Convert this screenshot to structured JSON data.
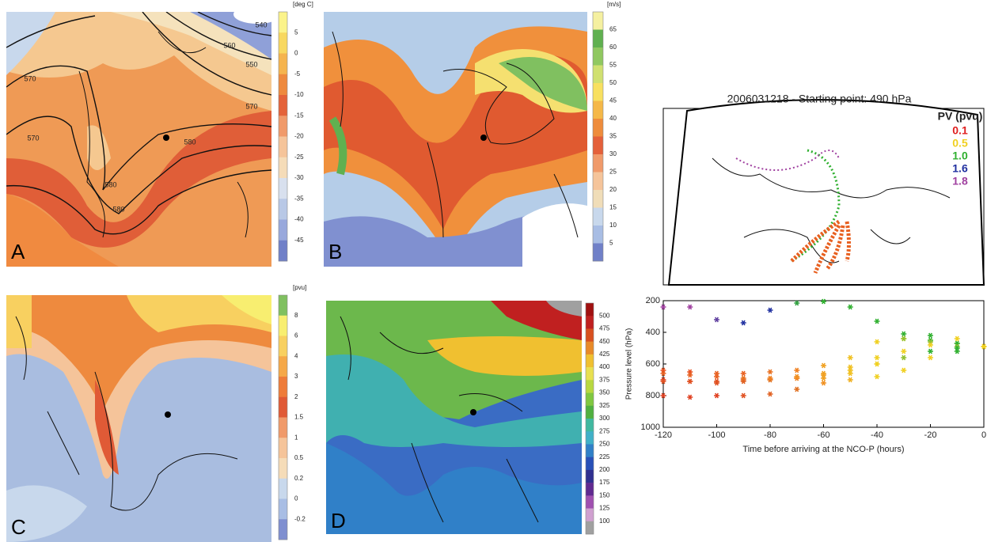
{
  "panels": [
    {
      "letter": "A",
      "unit": "[deg C]",
      "colorbar": {
        "labels": [
          "5",
          "0",
          "-5",
          "-10",
          "-15",
          "-20",
          "-25",
          "-30",
          "-35",
          "-40",
          "-45"
        ],
        "colors": [
          "#fbf38a",
          "#f8d860",
          "#f5b44e",
          "#ee8a3e",
          "#e4633a",
          "#f09a6a",
          "#f5c49a",
          "#f5dcb8",
          "#d8e0ee",
          "#b8c8e6",
          "#98a8dc",
          "#7080c8"
        ]
      },
      "contour_labels": [
        "540",
        "550",
        "560",
        "570",
        "570",
        "570",
        "580",
        "580",
        "580"
      ]
    },
    {
      "letter": "B",
      "unit": "[m/s]",
      "colorbar": {
        "labels": [
          "65",
          "60",
          "55",
          "50",
          "45",
          "40",
          "35",
          "30",
          "25",
          "20",
          "15",
          "10",
          "5"
        ],
        "colors": [
          "#f5f0a0",
          "#60b050",
          "#90c860",
          "#d0e070",
          "#f8e060",
          "#f5b848",
          "#ee8c3c",
          "#e4603a",
          "#f09a6a",
          "#f5c49a",
          "#f0ddb8",
          "#c8d8ec",
          "#a8bde4",
          "#7080c8"
        ]
      }
    },
    {
      "letter": "C",
      "unit": "[pvu]",
      "colorbar": {
        "labels": [
          "8",
          "6",
          "4",
          "3",
          "2",
          "1.5",
          "1",
          "0.5",
          "0.2",
          "0",
          "-0.2"
        ],
        "colors": [
          "#80c060",
          "#f8ee70",
          "#f8d060",
          "#f5a848",
          "#ee7c3a",
          "#e05a36",
          "#f09a6a",
          "#f5c49a",
          "#f5dcb8",
          "#c8d8ec",
          "#a8bde4",
          "#7f8fd0"
        ]
      }
    },
    {
      "letter": "D",
      "colorbar": {
        "labels": [
          "500",
          "475",
          "450",
          "425",
          "400",
          "375",
          "350",
          "325",
          "300",
          "275",
          "250",
          "225",
          "200",
          "175",
          "150",
          "125",
          "100"
        ],
        "colors": [
          "#a01010",
          "#c02020",
          "#d85020",
          "#e88a28",
          "#f0c030",
          "#e8e050",
          "#b8d840",
          "#80c840",
          "#50b040",
          "#40b8a0",
          "#40b0c8",
          "#3080c8",
          "#2850b8",
          "#303090",
          "#602a90",
          "#a050b0",
          "#d0a0d0",
          "#a0a0a0"
        ]
      }
    }
  ],
  "trajectory_map": {
    "title": "2006031218 - Starting point: 490 hPa",
    "legend_title": "PV (pvu)",
    "legend": [
      {
        "label": "0.1",
        "color": "#e02020"
      },
      {
        "label": "0.5",
        "color": "#f0d020"
      },
      {
        "label": "1.0",
        "color": "#30b030"
      },
      {
        "label": "1.6",
        "color": "#2030a0"
      },
      {
        "label": "1.8",
        "color": "#a040a0"
      }
    ]
  },
  "chart_data": {
    "type": "scatter",
    "marker": "asterisk",
    "x": [
      -120,
      -110,
      -100,
      -90,
      -80,
      -70,
      -60,
      -50,
      -40,
      -30,
      -20,
      -10,
      0
    ],
    "series": [
      {
        "values": [
          240,
          240,
          320,
          340,
          260,
          215,
          205,
          240,
          330,
          410,
          450,
          470,
          490
        ],
        "colors": [
          "#a040a0",
          "#a040a0",
          "#6040a0",
          "#2030a0",
          "#2030a0",
          "#30a040",
          "#30b030",
          "#30b030",
          "#30b030",
          "#30b030",
          "#30b030",
          "#80c030",
          "#f0d020"
        ]
      },
      {
        "values": [
          640,
          650,
          660,
          660,
          650,
          640,
          610,
          560,
          460,
          440,
          460,
          470,
          490
        ],
        "colors": [
          "#e85020",
          "#e85020",
          "#e86020",
          "#e86020",
          "#e87020",
          "#f08020",
          "#f0a020",
          "#f0c020",
          "#f0d020",
          "#f0d020",
          "#90c030",
          "#30b030",
          "#f0d020"
        ]
      },
      {
        "values": [
          700,
          710,
          710,
          700,
          700,
          690,
          670,
          640,
          600,
          520,
          480,
          490,
          490
        ],
        "colors": [
          "#e04020",
          "#e04020",
          "#e05020",
          "#e06020",
          "#e07020",
          "#f09020",
          "#f0a020",
          "#f0c020",
          "#f0d020",
          "#f0d020",
          "#f0d020",
          "#90c030",
          "#f0d020"
        ]
      },
      {
        "values": [
          710,
          710,
          720,
          710,
          700,
          690,
          690,
          660,
          600,
          560,
          520,
          500,
          490
        ],
        "colors": [
          "#e05020",
          "#e05020",
          "#e05020",
          "#e06020",
          "#e07020",
          "#f08020",
          "#f0a020",
          "#f0c020",
          "#f0d020",
          "#90c030",
          "#30b030",
          "#30b030",
          "#f0d020"
        ]
      },
      {
        "values": [
          800,
          810,
          800,
          800,
          790,
          760,
          720,
          700,
          680,
          640,
          560,
          520,
          490
        ],
        "colors": [
          "#e04020",
          "#e04020",
          "#e04020",
          "#e05020",
          "#e06020",
          "#e07020",
          "#f09020",
          "#f0b020",
          "#f0d020",
          "#f0d020",
          "#f0d020",
          "#30b030",
          "#f0d020"
        ]
      },
      {
        "values": [
          660,
          670,
          680,
          690,
          690,
          680,
          660,
          620,
          560,
          440,
          420,
          440,
          490
        ],
        "colors": [
          "#e86020",
          "#e86020",
          "#e86020",
          "#e87020",
          "#f08020",
          "#f09020",
          "#f0a020",
          "#f0c020",
          "#f0d020",
          "#90c030",
          "#30b030",
          "#f0d020",
          "#f0d020"
        ]
      }
    ],
    "xlim": [
      -120,
      0
    ],
    "ylim": [
      1000,
      200
    ],
    "xticks": [
      -120,
      -100,
      -80,
      -60,
      -40,
      -20,
      0
    ],
    "yticks": [
      200,
      400,
      600,
      800,
      1000
    ],
    "xlabel": "Time before arriving at the NCO-P (hours)",
    "ylabel": "Pressure level (hPa)"
  }
}
